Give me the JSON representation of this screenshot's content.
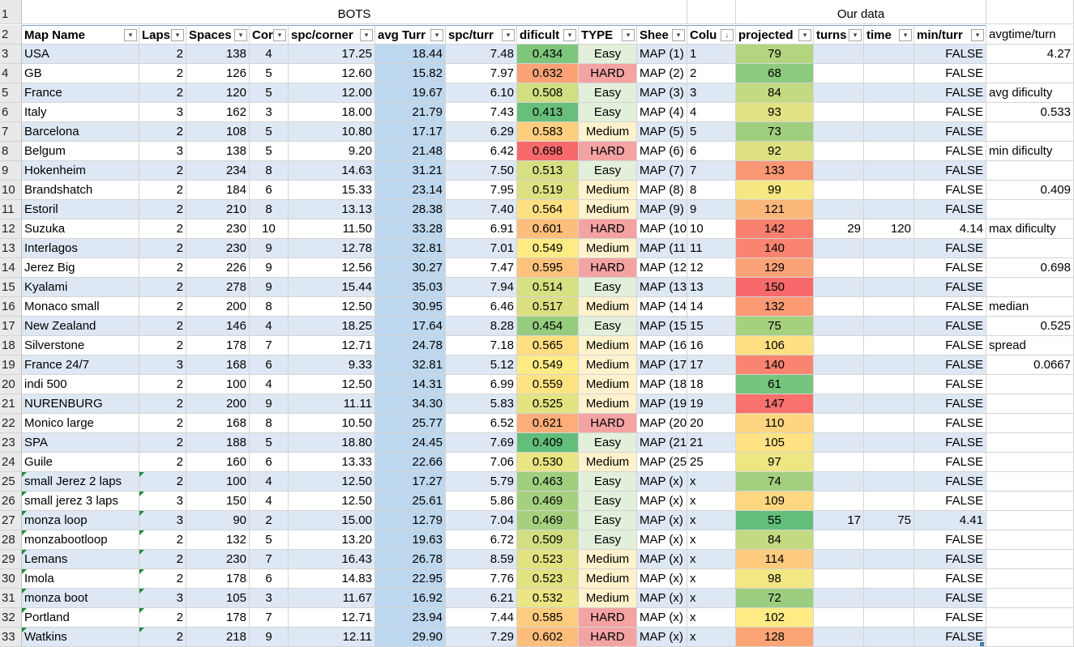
{
  "group_headers": {
    "bots": "BOTS",
    "our_data": "Our data"
  },
  "columns": [
    {
      "key": "map",
      "label": "Map Name",
      "filter": "▾"
    },
    {
      "key": "laps",
      "label": "Laps",
      "filter": "▾"
    },
    {
      "key": "spaces",
      "label": "Spaces",
      "filter": "▾"
    },
    {
      "key": "cor",
      "label": "Cor",
      "filter": "▾"
    },
    {
      "key": "spc_corner",
      "label": "spc/corner",
      "filter": "▾"
    },
    {
      "key": "avg_turn",
      "label": "avg Turr",
      "filter": "▾"
    },
    {
      "key": "spc_turn",
      "label": "spc/turr",
      "filter": "▾"
    },
    {
      "key": "dificult",
      "label": "dificult",
      "filter": "▾"
    },
    {
      "key": "type",
      "label": "TYPE",
      "filter": "▾"
    },
    {
      "key": "sheet",
      "label": "Shee",
      "filter": "▾"
    },
    {
      "key": "colu",
      "label": "Colu",
      "filter": "↓"
    },
    {
      "key": "projected",
      "label": "projected",
      "filter": "▾"
    },
    {
      "key": "turns",
      "label": "turns",
      "filter": "▾"
    },
    {
      "key": "time",
      "label": "time",
      "filter": "▾"
    },
    {
      "key": "min_turn",
      "label": "min/turr",
      "filter": "▾"
    },
    {
      "key": "extra",
      "label": "avgtime/turn",
      "filter": ""
    }
  ],
  "row_numbers": [
    "1",
    "2",
    "3",
    "4",
    "5",
    "6",
    "7",
    "8",
    "9",
    "10",
    "11",
    "12",
    "13",
    "14",
    "15",
    "16",
    "17",
    "18",
    "19",
    "20",
    "21",
    "22",
    "23",
    "24",
    "25",
    "26",
    "27",
    "28",
    "29",
    "30",
    "31",
    "32",
    "33"
  ],
  "rows": [
    {
      "map": "USA",
      "laps": "2",
      "spaces": "138",
      "cor": "4",
      "spc_corner": "17.25",
      "avg_turn": "18.44",
      "spc_turn": "7.48",
      "dificult": "0.434",
      "type": "Easy",
      "sheet": "MAP (1)",
      "colu": "1",
      "projected": "79",
      "turns": "",
      "time": "",
      "min_turn": "FALSE",
      "extra": "4.27"
    },
    {
      "map": "GB",
      "laps": "2",
      "spaces": "126",
      "cor": "5",
      "spc_corner": "12.60",
      "avg_turn": "15.82",
      "spc_turn": "7.97",
      "dificult": "0.632",
      "type": "HARD",
      "sheet": "MAP (2)",
      "colu": "2",
      "projected": "68",
      "turns": "",
      "time": "",
      "min_turn": "FALSE",
      "extra": ""
    },
    {
      "map": "France",
      "laps": "2",
      "spaces": "120",
      "cor": "5",
      "spc_corner": "12.00",
      "avg_turn": "19.67",
      "spc_turn": "6.10",
      "dificult": "0.508",
      "type": "Easy",
      "sheet": "MAP (3)",
      "colu": "3",
      "projected": "84",
      "turns": "",
      "time": "",
      "min_turn": "FALSE",
      "extra": "avg dificulty"
    },
    {
      "map": "Italy",
      "laps": "3",
      "spaces": "162",
      "cor": "3",
      "spc_corner": "18.00",
      "avg_turn": "21.79",
      "spc_turn": "7.43",
      "dificult": "0.413",
      "type": "Easy",
      "sheet": "MAP (4)",
      "colu": "4",
      "projected": "93",
      "turns": "",
      "time": "",
      "min_turn": "FALSE",
      "extra": "0.533"
    },
    {
      "map": "Barcelona",
      "laps": "2",
      "spaces": "108",
      "cor": "5",
      "spc_corner": "10.80",
      "avg_turn": "17.17",
      "spc_turn": "6.29",
      "dificult": "0.583",
      "type": "Medium",
      "sheet": "MAP (5)",
      "colu": "5",
      "projected": "73",
      "turns": "",
      "time": "",
      "min_turn": "FALSE",
      "extra": ""
    },
    {
      "map": "Belgum",
      "laps": "3",
      "spaces": "138",
      "cor": "5",
      "spc_corner": "9.20",
      "avg_turn": "21.48",
      "spc_turn": "6.42",
      "dificult": "0.698",
      "type": "HARD",
      "sheet": "MAP (6)",
      "colu": "6",
      "projected": "92",
      "turns": "",
      "time": "",
      "min_turn": "FALSE",
      "extra": "min dificulty"
    },
    {
      "map": "Hokenheim",
      "laps": "2",
      "spaces": "234",
      "cor": "8",
      "spc_corner": "14.63",
      "avg_turn": "31.21",
      "spc_turn": "7.50",
      "dificult": "0.513",
      "type": "Easy",
      "sheet": "MAP (7)",
      "colu": "7",
      "projected": "133",
      "turns": "",
      "time": "",
      "min_turn": "FALSE",
      "extra": ""
    },
    {
      "map": "Brandshatch",
      "laps": "2",
      "spaces": "184",
      "cor": "6",
      "spc_corner": "15.33",
      "avg_turn": "23.14",
      "spc_turn": "7.95",
      "dificult": "0.519",
      "type": "Medium",
      "sheet": "MAP (8)",
      "colu": "8",
      "projected": "99",
      "turns": "",
      "time": "",
      "min_turn": "FALSE",
      "extra": "0.409"
    },
    {
      "map": "Estoril",
      "laps": "2",
      "spaces": "210",
      "cor": "8",
      "spc_corner": "13.13",
      "avg_turn": "28.38",
      "spc_turn": "7.40",
      "dificult": "0.564",
      "type": "Medium",
      "sheet": "MAP (9)",
      "colu": "9",
      "projected": "121",
      "turns": "",
      "time": "",
      "min_turn": "FALSE",
      "extra": ""
    },
    {
      "map": "Suzuka",
      "laps": "2",
      "spaces": "230",
      "cor": "10",
      "spc_corner": "11.50",
      "avg_turn": "33.28",
      "spc_turn": "6.91",
      "dificult": "0.601",
      "type": "HARD",
      "sheet": "MAP (10",
      "colu": "10",
      "projected": "142",
      "turns": "29",
      "time": "120",
      "min_turn": "4.14",
      "extra": "max dificulty"
    },
    {
      "map": "Interlagos",
      "laps": "2",
      "spaces": "230",
      "cor": "9",
      "spc_corner": "12.78",
      "avg_turn": "32.81",
      "spc_turn": "7.01",
      "dificult": "0.549",
      "type": "Medium",
      "sheet": "MAP (11",
      "colu": "11",
      "projected": "140",
      "turns": "",
      "time": "",
      "min_turn": "FALSE",
      "extra": ""
    },
    {
      "map": "Jerez Big",
      "laps": "2",
      "spaces": "226",
      "cor": "9",
      "spc_corner": "12.56",
      "avg_turn": "30.27",
      "spc_turn": "7.47",
      "dificult": "0.595",
      "type": "HARD",
      "sheet": "MAP (12",
      "colu": "12",
      "projected": "129",
      "turns": "",
      "time": "",
      "min_turn": "FALSE",
      "extra": "0.698"
    },
    {
      "map": "Kyalami",
      "laps": "2",
      "spaces": "278",
      "cor": "9",
      "spc_corner": "15.44",
      "avg_turn": "35.03",
      "spc_turn": "7.94",
      "dificult": "0.514",
      "type": "Easy",
      "sheet": "MAP (13",
      "colu": "13",
      "projected": "150",
      "turns": "",
      "time": "",
      "min_turn": "FALSE",
      "extra": ""
    },
    {
      "map": "Monaco small",
      "laps": "2",
      "spaces": "200",
      "cor": "8",
      "spc_corner": "12.50",
      "avg_turn": "30.95",
      "spc_turn": "6.46",
      "dificult": "0.517",
      "type": "Medium",
      "sheet": "MAP (14",
      "colu": "14",
      "projected": "132",
      "turns": "",
      "time": "",
      "min_turn": "FALSE",
      "extra": "median"
    },
    {
      "map": "New Zealand",
      "laps": "2",
      "spaces": "146",
      "cor": "4",
      "spc_corner": "18.25",
      "avg_turn": "17.64",
      "spc_turn": "8.28",
      "dificult": "0.454",
      "type": "Easy",
      "sheet": "MAP (15",
      "colu": "15",
      "projected": "75",
      "turns": "",
      "time": "",
      "min_turn": "FALSE",
      "extra": "0.525"
    },
    {
      "map": "Silverstone",
      "laps": "2",
      "spaces": "178",
      "cor": "7",
      "spc_corner": "12.71",
      "avg_turn": "24.78",
      "spc_turn": "7.18",
      "dificult": "0.565",
      "type": "Medium",
      "sheet": "MAP (16",
      "colu": "16",
      "projected": "106",
      "turns": "",
      "time": "",
      "min_turn": "FALSE",
      "extra": "spread"
    },
    {
      "map": "France 24/7",
      "laps": "3",
      "spaces": "168",
      "cor": "6",
      "spc_corner": "9.33",
      "avg_turn": "32.81",
      "spc_turn": "5.12",
      "dificult": "0.549",
      "type": "Medium",
      "sheet": "MAP (17",
      "colu": "17",
      "projected": "140",
      "turns": "",
      "time": "",
      "min_turn": "FALSE",
      "extra": "0.0667"
    },
    {
      "map": "indi 500",
      "laps": "2",
      "spaces": "100",
      "cor": "4",
      "spc_corner": "12.50",
      "avg_turn": "14.31",
      "spc_turn": "6.99",
      "dificult": "0.559",
      "type": "Medium",
      "sheet": "MAP (18",
      "colu": "18",
      "projected": "61",
      "turns": "",
      "time": "",
      "min_turn": "FALSE",
      "extra": ""
    },
    {
      "map": "NURENBURG",
      "laps": "2",
      "spaces": "200",
      "cor": "9",
      "spc_corner": "11.11",
      "avg_turn": "34.30",
      "spc_turn": "5.83",
      "dificult": "0.525",
      "type": "Medium",
      "sheet": "MAP (19",
      "colu": "19",
      "projected": "147",
      "turns": "",
      "time": "",
      "min_turn": "FALSE",
      "extra": ""
    },
    {
      "map": "Monico large",
      "laps": "2",
      "spaces": "168",
      "cor": "8",
      "spc_corner": "10.50",
      "avg_turn": "25.77",
      "spc_turn": "6.52",
      "dificult": "0.621",
      "type": "HARD",
      "sheet": "MAP (20",
      "colu": "20",
      "projected": "110",
      "turns": "",
      "time": "",
      "min_turn": "FALSE",
      "extra": ""
    },
    {
      "map": "SPA",
      "laps": "2",
      "spaces": "188",
      "cor": "5",
      "spc_corner": "18.80",
      "avg_turn": "24.45",
      "spc_turn": "7.69",
      "dificult": "0.409",
      "type": "Easy",
      "sheet": "MAP (21",
      "colu": "21",
      "projected": "105",
      "turns": "",
      "time": "",
      "min_turn": "FALSE",
      "extra": ""
    },
    {
      "map": "Guile",
      "laps": "2",
      "spaces": "160",
      "cor": "6",
      "spc_corner": "13.33",
      "avg_turn": "22.66",
      "spc_turn": "7.06",
      "dificult": "0.530",
      "type": "Medium",
      "sheet": "MAP (25",
      "colu": "25",
      "projected": "97",
      "turns": "",
      "time": "",
      "min_turn": "FALSE",
      "extra": ""
    },
    {
      "map": "small Jerez 2 laps",
      "laps": "2",
      "spaces": "100",
      "cor": "4",
      "spc_corner": "12.50",
      "avg_turn": "17.27",
      "spc_turn": "5.79",
      "dificult": "0.463",
      "type": "Easy",
      "sheet": "MAP (x)",
      "colu": "x",
      "projected": "74",
      "turns": "",
      "time": "",
      "min_turn": "FALSE",
      "extra": "",
      "flag": true
    },
    {
      "map": "small jerez 3 laps",
      "laps": "3",
      "spaces": "150",
      "cor": "4",
      "spc_corner": "12.50",
      "avg_turn": "25.61",
      "spc_turn": "5.86",
      "dificult": "0.469",
      "type": "Easy",
      "sheet": "MAP (x)",
      "colu": "x",
      "projected": "109",
      "turns": "",
      "time": "",
      "min_turn": "FALSE",
      "extra": "",
      "flag": true
    },
    {
      "map": "monza loop",
      "laps": "3",
      "spaces": "90",
      "cor": "2",
      "spc_corner": "15.00",
      "avg_turn": "12.79",
      "spc_turn": "7.04",
      "dificult": "0.469",
      "type": "Easy",
      "sheet": "MAP (x)",
      "colu": "x",
      "projected": "55",
      "turns": "17",
      "time": "75",
      "min_turn": "4.41",
      "extra": "",
      "flag": true
    },
    {
      "map": "monzabootloop",
      "laps": "2",
      "spaces": "132",
      "cor": "5",
      "spc_corner": "13.20",
      "avg_turn": "19.63",
      "spc_turn": "6.72",
      "dificult": "0.509",
      "type": "Easy",
      "sheet": "MAP (x)",
      "colu": "x",
      "projected": "84",
      "turns": "",
      "time": "",
      "min_turn": "FALSE",
      "extra": "",
      "flag": true
    },
    {
      "map": "Lemans",
      "laps": "2",
      "spaces": "230",
      "cor": "7",
      "spc_corner": "16.43",
      "avg_turn": "26.78",
      "spc_turn": "8.59",
      "dificult": "0.523",
      "type": "Medium",
      "sheet": "MAP (x)",
      "colu": "x",
      "projected": "114",
      "turns": "",
      "time": "",
      "min_turn": "FALSE",
      "extra": "",
      "flag": true
    },
    {
      "map": "Imola",
      "laps": "2",
      "spaces": "178",
      "cor": "6",
      "spc_corner": "14.83",
      "avg_turn": "22.95",
      "spc_turn": "7.76",
      "dificult": "0.523",
      "type": "Medium",
      "sheet": "MAP (x)",
      "colu": "x",
      "projected": "98",
      "turns": "",
      "time": "",
      "min_turn": "FALSE",
      "extra": "",
      "flag": true
    },
    {
      "map": "monza boot",
      "laps": "3",
      "spaces": "105",
      "cor": "3",
      "spc_corner": "11.67",
      "avg_turn": "16.92",
      "spc_turn": "6.21",
      "dificult": "0.532",
      "type": "Medium",
      "sheet": "MAP (x)",
      "colu": "x",
      "projected": "72",
      "turns": "",
      "time": "",
      "min_turn": "FALSE",
      "extra": "",
      "flag": true
    },
    {
      "map": "Portland",
      "laps": "2",
      "spaces": "178",
      "cor": "7",
      "spc_corner": "12.71",
      "avg_turn": "23.94",
      "spc_turn": "7.44",
      "dificult": "0.585",
      "type": "HARD",
      "sheet": "MAP (x)",
      "colu": "x",
      "projected": "102",
      "turns": "",
      "time": "",
      "min_turn": "FALSE",
      "extra": "",
      "flag": true
    },
    {
      "map": "Watkins",
      "laps": "2",
      "spaces": "218",
      "cor": "9",
      "spc_corner": "12.11",
      "avg_turn": "29.90",
      "spc_turn": "7.29",
      "dificult": "0.602",
      "type": "HARD",
      "sheet": "MAP (x)",
      "colu": "x",
      "projected": "128",
      "turns": "",
      "time": "",
      "min_turn": "FALSE",
      "extra": "",
      "flag": true
    }
  ],
  "colors": {
    "band": "#dde8f4",
    "avg_turn_fill": "#bdd7ee",
    "type_easy": "#e2efda",
    "type_medium": "#fff2cc",
    "type_hard": "#f4a3a3",
    "scale_low": "#63be7b",
    "scale_mid": "#ffeb84",
    "scale_high": "#f8696b",
    "comment_flag": "#1f8a3b"
  }
}
